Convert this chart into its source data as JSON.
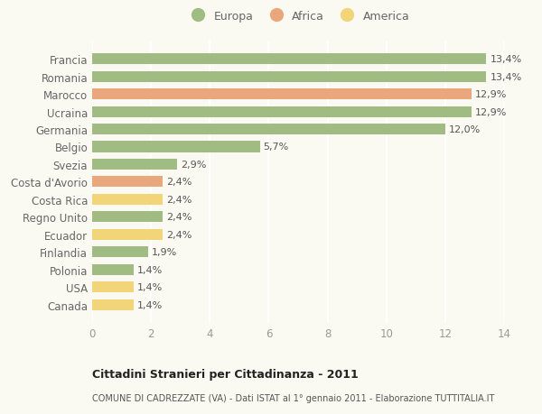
{
  "categories": [
    "Canada",
    "USA",
    "Polonia",
    "Finlandia",
    "Ecuador",
    "Regno Unito",
    "Costa Rica",
    "Costa d'Avorio",
    "Svezia",
    "Belgio",
    "Germania",
    "Ucraina",
    "Marocco",
    "Romania",
    "Francia"
  ],
  "values": [
    1.4,
    1.4,
    1.4,
    1.9,
    2.4,
    2.4,
    2.4,
    2.4,
    2.9,
    5.7,
    12.0,
    12.9,
    12.9,
    13.4,
    13.4
  ],
  "labels": [
    "1,4%",
    "1,4%",
    "1,4%",
    "1,9%",
    "2,4%",
    "2,4%",
    "2,4%",
    "2,4%",
    "2,9%",
    "5,7%",
    "12,0%",
    "12,9%",
    "12,9%",
    "13,4%",
    "13,4%"
  ],
  "colors": [
    "#f2d479",
    "#f2d479",
    "#a0bc82",
    "#a0bc82",
    "#f2d479",
    "#a0bc82",
    "#f2d479",
    "#e8a87c",
    "#a0bc82",
    "#a0bc82",
    "#a0bc82",
    "#a0bc82",
    "#e8a87c",
    "#a0bc82",
    "#a0bc82"
  ],
  "continent_labels": [
    "Europa",
    "Africa",
    "America"
  ],
  "continent_colors": [
    "#a0bc82",
    "#e8a87c",
    "#f2d479"
  ],
  "xlim": [
    0,
    14
  ],
  "xticks": [
    0,
    2,
    4,
    6,
    8,
    10,
    12,
    14
  ],
  "title": "Cittadini Stranieri per Cittadinanza - 2011",
  "subtitle": "COMUNE DI CADREZZATE (VA) - Dati ISTAT al 1° gennaio 2011 - Elaborazione TUTTITALIA.IT",
  "bg_color": "#fafaf2",
  "grid_color": "#ffffff",
  "bar_height": 0.62,
  "label_fontsize": 8.0,
  "tick_fontsize": 8.5,
  "ytick_color": "#666666",
  "xtick_color": "#999999",
  "label_color": "#555555"
}
